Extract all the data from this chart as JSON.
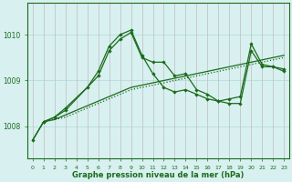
{
  "xlabel": "Graphe pression niveau de la mer (hPa)",
  "background_color": "#d8f0f0",
  "grid_color": "#b0d8d8",
  "line_color": "#1a6b1a",
  "ylim": [
    1007.3,
    1010.7
  ],
  "yticks": [
    1008,
    1009,
    1010
  ],
  "xlim": [
    -0.5,
    23.5
  ],
  "xticks": [
    0,
    1,
    2,
    3,
    4,
    5,
    6,
    7,
    8,
    9,
    10,
    11,
    12,
    13,
    14,
    15,
    16,
    17,
    18,
    19,
    20,
    21,
    22,
    23
  ],
  "lines": [
    {
      "x": [
        0,
        1,
        2,
        3,
        4,
        5,
        6,
        7,
        8,
        9,
        10,
        11,
        12,
        13,
        14,
        15,
        16,
        17,
        18,
        19,
        20,
        21,
        22,
        23
      ],
      "y": [
        1007.7,
        1008.1,
        1008.15,
        1008.2,
        1008.3,
        1008.4,
        1008.5,
        1008.6,
        1008.7,
        1008.8,
        1008.85,
        1008.9,
        1008.95,
        1009.0,
        1009.05,
        1009.1,
        1009.15,
        1009.2,
        1009.25,
        1009.3,
        1009.35,
        1009.4,
        1009.45,
        1009.5
      ],
      "style": "dotted",
      "marker": false
    },
    {
      "x": [
        0,
        1,
        2,
        3,
        4,
        5,
        6,
        7,
        8,
        9,
        10,
        11,
        12,
        13,
        14,
        15,
        16,
        17,
        18,
        19,
        20,
        21,
        22,
        23
      ],
      "y": [
        1007.7,
        1008.1,
        1008.15,
        1008.25,
        1008.35,
        1008.45,
        1008.55,
        1008.65,
        1008.75,
        1008.85,
        1008.9,
        1008.95,
        1009.0,
        1009.05,
        1009.1,
        1009.15,
        1009.2,
        1009.25,
        1009.3,
        1009.35,
        1009.4,
        1009.45,
        1009.5,
        1009.55
      ],
      "style": "solid",
      "marker": false
    },
    {
      "x": [
        0,
        1,
        2,
        3,
        5,
        6,
        7,
        8,
        9,
        10,
        11,
        12,
        13,
        14,
        15,
        16,
        17,
        18,
        19,
        20,
        21,
        22,
        23
      ],
      "y": [
        1007.7,
        1008.1,
        1008.2,
        1008.4,
        1008.85,
        1009.2,
        1009.75,
        1010.0,
        1010.1,
        1009.55,
        1009.15,
        1008.85,
        1008.75,
        1008.8,
        1008.7,
        1008.6,
        1008.55,
        1008.6,
        1008.65,
        1009.8,
        1009.35,
        1009.3,
        1009.25
      ],
      "style": "solid",
      "marker": true
    },
    {
      "x": [
        1,
        2,
        3,
        6,
        7,
        8,
        9,
        10,
        11,
        12,
        13,
        14,
        15,
        16,
        17,
        18,
        19,
        20,
        21,
        22,
        23
      ],
      "y": [
        1008.1,
        1008.2,
        1008.35,
        1009.1,
        1009.65,
        1009.9,
        1010.05,
        1009.5,
        1009.4,
        1009.4,
        1009.1,
        1009.15,
        1008.8,
        1008.7,
        1008.55,
        1008.5,
        1008.5,
        1009.65,
        1009.3,
        1009.3,
        1009.2
      ],
      "style": "solid",
      "marker": true
    }
  ]
}
